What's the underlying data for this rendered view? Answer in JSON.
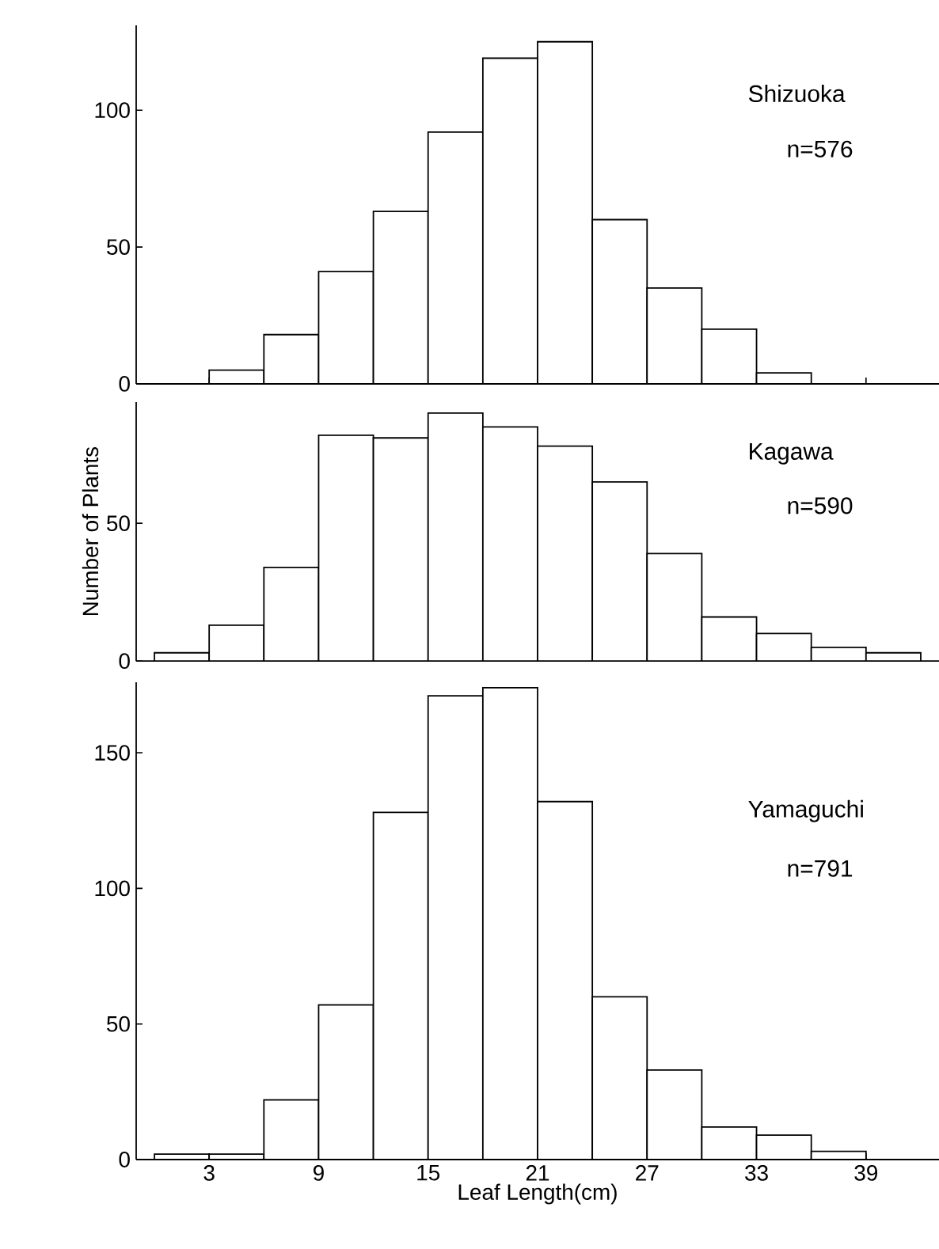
{
  "chart_data": [
    {
      "type": "histogram",
      "bins": [
        0,
        3,
        6,
        9,
        12,
        15,
        18,
        21,
        24,
        27,
        30,
        33,
        36,
        39,
        42
      ],
      "values": [
        0,
        5,
        18,
        41,
        63,
        92,
        119,
        125,
        60,
        35,
        20,
        4,
        0,
        0
      ],
      "color": "#ffffff",
      "xlim": [
        -1,
        43
      ],
      "ylim": [
        0,
        131
      ],
      "xticks": [
        3,
        9,
        15,
        21,
        27,
        33,
        39
      ],
      "yticks": [
        0,
        50,
        100
      ],
      "tick_labels": "y",
      "annotations": [
        "Shizuoka",
        "n=576"
      ]
    },
    {
      "type": "histogram",
      "bins": [
        0,
        3,
        6,
        9,
        12,
        15,
        18,
        21,
        24,
        27,
        30,
        33,
        36,
        39,
        42
      ],
      "values": [
        3,
        13,
        34,
        82,
        81,
        90,
        85,
        78,
        65,
        39,
        16,
        10,
        5,
        3
      ],
      "color": "#ffffff",
      "xlim": [
        -1,
        43
      ],
      "ylim": [
        0,
        94
      ],
      "xticks": [
        3,
        9,
        15,
        21,
        27,
        33,
        39
      ],
      "yticks": [
        0,
        50
      ],
      "tick_labels": "y",
      "ylabel": "Number of Plants",
      "annotations": [
        "Kagawa",
        "n=590"
      ]
    },
    {
      "type": "histogram",
      "bins": [
        0,
        3,
        6,
        9,
        12,
        15,
        18,
        21,
        24,
        27,
        30,
        33,
        36,
        39,
        42
      ],
      "values": [
        2,
        2,
        22,
        57,
        128,
        171,
        174,
        132,
        60,
        33,
        12,
        9,
        3,
        0
      ],
      "color": "#ffffff",
      "xlim": [
        -1,
        43
      ],
      "ylim": [
        0,
        176
      ],
      "xticks": [
        3,
        9,
        15,
        21,
        27,
        33,
        39
      ],
      "yticks": [
        0,
        50,
        100,
        150
      ],
      "xlabel": "Leaf Length(cm)",
      "annotations": [
        "Yamaguchi",
        "n=791"
      ]
    }
  ]
}
